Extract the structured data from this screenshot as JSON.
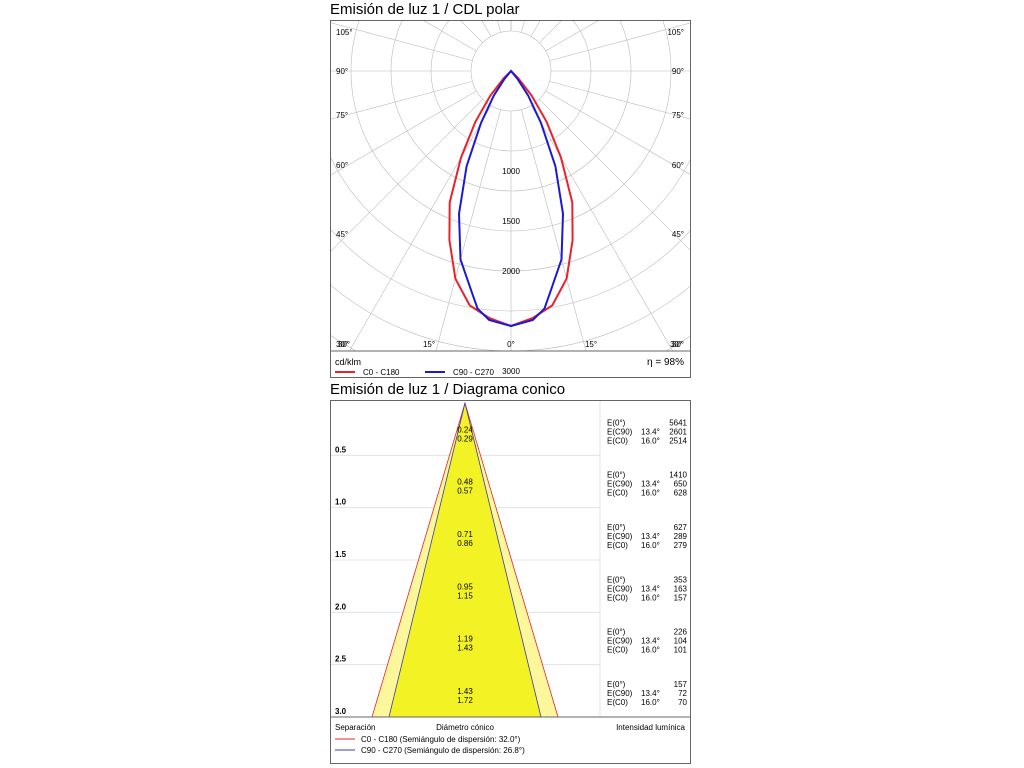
{
  "polar": {
    "title": "Emisión de luz 1 / CDL polar",
    "unit": "cd/klm",
    "efficiency": "η = 98%",
    "angle_labels_left": [
      "105°",
      "90°",
      "75°",
      "60°",
      "45°",
      "30°"
    ],
    "angle_labels_right": [
      "105°",
      "90°",
      "75°",
      "60°",
      "45°",
      "30°"
    ],
    "bottom_angle_labels": [
      "30°",
      "15°",
      "0°",
      "15°",
      "30°"
    ],
    "legend": [
      {
        "label": "C0 - C180",
        "color": "#e8232a"
      },
      {
        "label": "C90 - C270",
        "color": "#1a1ad6"
      }
    ]
  },
  "cone": {
    "title": "Emisión de luz 1 / Diagrama conico",
    "footer": {
      "separation": "Separación",
      "diameter": "Diámetro cónico",
      "intensity": "Intensidad lumínica"
    },
    "legend": [
      {
        "label": "C0 - C180 (Semiángulo de dispersión: 32.0°)",
        "color": "#e8232a"
      },
      {
        "label": "C90 - C270 (Semiángulo de dispersión: 26.8°)",
        "color": "#3b3bb0"
      }
    ]
  },
  "chart_data": [
    {
      "type": "polar",
      "title": "Emisión de luz 1 / CDL polar",
      "unit": "cd/klm",
      "radial_ticks": [
        1000,
        1500,
        2000,
        3000
      ],
      "efficiency_percent": 98,
      "series": [
        {
          "name": "C0 - C180",
          "color": "#e8232a",
          "points": [
            [
              0,
              2550
            ],
            [
              5,
              2480
            ],
            [
              10,
              2380
            ],
            [
              15,
              2150
            ],
            [
              20,
              1800
            ],
            [
              25,
              1450
            ],
            [
              30,
              1000
            ],
            [
              35,
              620
            ],
            [
              40,
              320
            ],
            [
              45,
              100
            ],
            [
              50,
              0
            ]
          ]
        },
        {
          "name": "C90 - C270",
          "color": "#1a1ad6",
          "points": [
            [
              0,
              2550
            ],
            [
              5,
              2500
            ],
            [
              8,
              2400
            ],
            [
              10,
              2250
            ],
            [
              15,
              1950
            ],
            [
              20,
              1520
            ],
            [
              25,
              1050
            ],
            [
              30,
              600
            ],
            [
              35,
              300
            ],
            [
              40,
              100
            ],
            [
              43,
              0
            ]
          ]
        }
      ]
    },
    {
      "type": "table",
      "title": "Emisión de luz 1 / Diagrama conico",
      "columns": [
        "Separación",
        "Diámetro cónico",
        "Intensidad lumínica"
      ],
      "rows": [
        {
          "separation": "0.5",
          "diam_c90": "0.24",
          "diam_c0": "0.29",
          "e0": "5641",
          "ec90": "2601",
          "ec0": "2514",
          "angle_c90": "13.4°",
          "angle_c0": "16.0°"
        },
        {
          "separation": "1.0",
          "diam_c90": "0.48",
          "diam_c0": "0.57",
          "e0": "1410",
          "ec90": "650",
          "ec0": "628",
          "angle_c90": "13.4°",
          "angle_c0": "16.0°"
        },
        {
          "separation": "1.5",
          "diam_c90": "0.71",
          "diam_c0": "0.86",
          "e0": "627",
          "ec90": "289",
          "ec0": "279",
          "angle_c90": "13.4°",
          "angle_c0": "16.0°"
        },
        {
          "separation": "2.0",
          "diam_c90": "0.95",
          "diam_c0": "1.15",
          "e0": "353",
          "ec90": "163",
          "ec0": "157",
          "angle_c90": "13.4°",
          "angle_c0": "16.0°"
        },
        {
          "separation": "2.5",
          "diam_c90": "1.19",
          "diam_c0": "1.43",
          "e0": "226",
          "ec90": "104",
          "ec0": "101",
          "angle_c90": "13.4°",
          "angle_c0": "16.0°"
        },
        {
          "separation": "3.0",
          "diam_c90": "1.43",
          "diam_c0": "1.72",
          "e0": "157",
          "ec90": "72",
          "ec0": "70",
          "angle_c90": "13.4°",
          "angle_c0": "16.0°"
        }
      ],
      "labels": {
        "e0": "E(0°)",
        "ec90": "E(C90)",
        "ec0": "E(C0)"
      }
    }
  ]
}
